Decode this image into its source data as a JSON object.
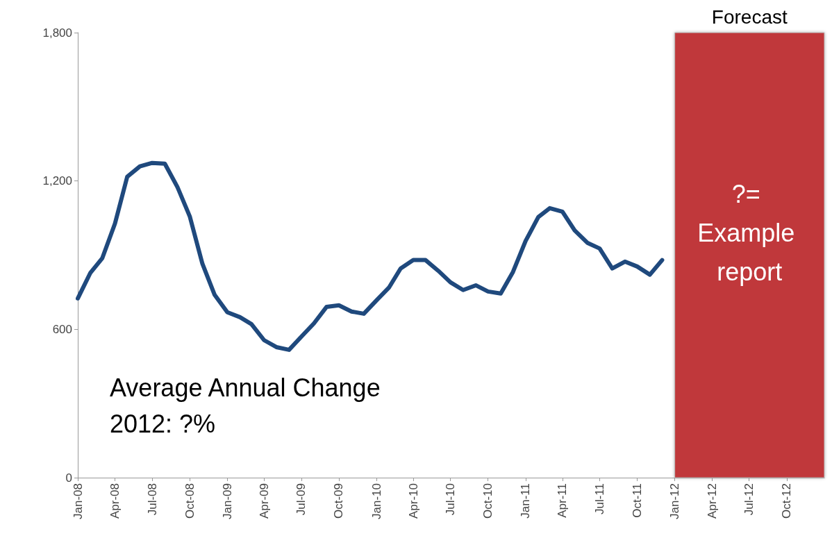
{
  "chart_data": {
    "type": "line",
    "x": [
      "2008-01",
      "2008-02",
      "2008-03",
      "2008-04",
      "2008-05",
      "2008-06",
      "2008-07",
      "2008-08",
      "2008-09",
      "2008-10",
      "2008-11",
      "2008-12",
      "2009-01",
      "2009-02",
      "2009-03",
      "2009-04",
      "2009-05",
      "2009-06",
      "2009-07",
      "2009-08",
      "2009-09",
      "2009-10",
      "2009-11",
      "2009-12",
      "2010-01",
      "2010-02",
      "2010-03",
      "2010-04",
      "2010-05",
      "2010-06",
      "2010-07",
      "2010-08",
      "2010-09",
      "2010-10",
      "2010-11",
      "2010-12",
      "2011-01",
      "2011-02",
      "2011-03",
      "2011-04",
      "2011-05",
      "2011-06",
      "2011-07",
      "2011-08",
      "2011-09",
      "2011-10",
      "2011-11",
      "2011-12"
    ],
    "series": [
      {
        "color": "#1f497d",
        "values": [
          725,
          829,
          888,
          1028,
          1217,
          1259,
          1273,
          1270,
          1175,
          1057,
          865,
          739,
          669,
          649,
          621,
          556,
          528,
          517,
          570,
          624,
          691,
          697,
          672,
          663,
          717,
          770,
          846,
          880,
          880,
          837,
          790,
          759,
          778,
          753,
          745,
          832,
          958,
          1054,
          1090,
          1076,
          1000,
          950,
          927,
          846,
          874,
          854,
          821,
          880
        ]
      }
    ],
    "xlim": [
      "2008-01",
      "2013-01"
    ],
    "xticks": [
      {
        "value": "2008-01",
        "label": "Jan-08"
      },
      {
        "value": "2008-04",
        "label": "Apr-08"
      },
      {
        "value": "2008-07",
        "label": "Jul-08"
      },
      {
        "value": "2008-10",
        "label": "Oct-08"
      },
      {
        "value": "2009-01",
        "label": "Jan-09"
      },
      {
        "value": "2009-04",
        "label": "Apr-09"
      },
      {
        "value": "2009-07",
        "label": "Jul-09"
      },
      {
        "value": "2009-10",
        "label": "Oct-09"
      },
      {
        "value": "2010-01",
        "label": "Jan-10"
      },
      {
        "value": "2010-04",
        "label": "Apr-10"
      },
      {
        "value": "2010-07",
        "label": "Jul-10"
      },
      {
        "value": "2010-10",
        "label": "Oct-10"
      },
      {
        "value": "2011-01",
        "label": "Jan-11"
      },
      {
        "value": "2011-04",
        "label": "Apr-11"
      },
      {
        "value": "2011-07",
        "label": "Jul-11"
      },
      {
        "value": "2011-10",
        "label": "Oct-11"
      },
      {
        "value": "2012-01",
        "label": "Jan-12"
      },
      {
        "value": "2012-04",
        "label": "Apr-12"
      },
      {
        "value": "2012-07",
        "label": "Jul-12"
      },
      {
        "value": "2012-10",
        "label": "Oct-12"
      }
    ],
    "ylim": [
      0,
      1800
    ],
    "yticks": [
      {
        "value": 0,
        "label": "0"
      },
      {
        "value": 600,
        "label": "600"
      },
      {
        "value": 1200,
        "label": "1,200"
      },
      {
        "value": 1800,
        "label": "1,800"
      }
    ],
    "bands": [
      {
        "axis": "x",
        "from": "2012-01",
        "to": "2013-01",
        "label": "Forecast",
        "color": "#c0393a"
      }
    ],
    "annotations": [
      "?= Example report",
      "Average Annual Change\n2012: ?%"
    ],
    "grid": false,
    "marker": "none",
    "line_style": "solid"
  }
}
